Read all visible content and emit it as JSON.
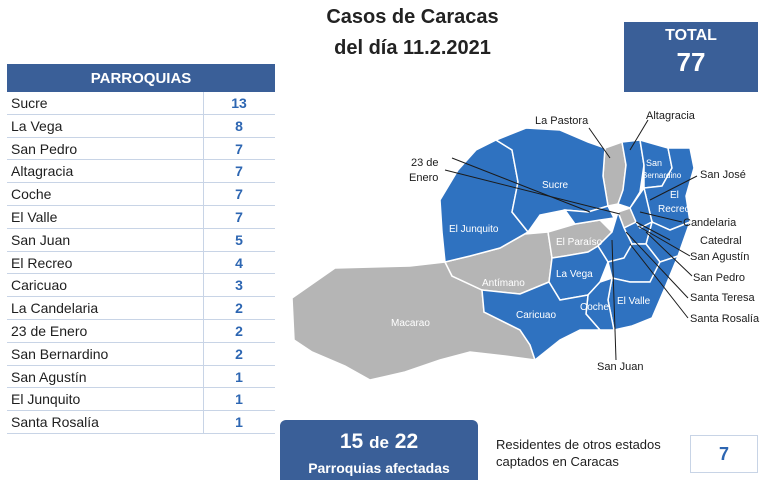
{
  "title": {
    "line1": "Casos de Caracas",
    "line2": "del día 11.2.2021"
  },
  "total": {
    "label": "TOTAL",
    "value": "77"
  },
  "table": {
    "header": "PARROQUIAS",
    "rows": [
      {
        "name": "Sucre",
        "value": "13"
      },
      {
        "name": "La Vega",
        "value": "8"
      },
      {
        "name": "San Pedro",
        "value": "7"
      },
      {
        "name": "Altagracia",
        "value": "7"
      },
      {
        "name": "Coche",
        "value": "7"
      },
      {
        "name": "El Valle",
        "value": "7"
      },
      {
        "name": "San Juan",
        "value": "5"
      },
      {
        "name": "El Recreo",
        "value": "4"
      },
      {
        "name": "Caricuao",
        "value": "3"
      },
      {
        "name": "La Candelaria",
        "value": "2"
      },
      {
        "name": "23 de Enero",
        "value": "2"
      },
      {
        "name": "San Bernardino",
        "value": "2"
      },
      {
        "name": "San Agustín",
        "value": "1"
      },
      {
        "name": "El Junquito",
        "value": "1"
      },
      {
        "name": "Santa Rosalía",
        "value": "1"
      }
    ]
  },
  "affected": {
    "count": "15",
    "connector": "de",
    "total": "22",
    "label": "Parroquias afectadas"
  },
  "residents": {
    "text": "Residentes de otros estados captados en Caracas",
    "value": "7"
  },
  "map": {
    "colors": {
      "affected": "#2f72c0",
      "unaffected": "#b5b5b5",
      "border": "#ffffff"
    },
    "inner_labels": {
      "sucre": "Sucre",
      "el_junquito": "El Junquito",
      "antimano": "Antímano",
      "macarao": "Macarao",
      "caricuao": "Caricuao",
      "la_vega": "La Vega",
      "el_paraiso": "El Paraíso",
      "coche": "Coche",
      "el_valle": "El Valle",
      "san_bernardino_1": "San",
      "san_bernardino_2": "Bernardino",
      "el_recreo_1": "El",
      "el_recreo_2": "Recreo"
    },
    "callouts": {
      "la_pastora": "La Pastora",
      "altagracia": "Altagracia",
      "enero_1": "23 de",
      "enero_2": "Enero",
      "san_jose": "San José",
      "candelaria": "Candelaria",
      "catedral": "Catedral",
      "san_agustin": "San Agustín",
      "san_pedro": "San Pedro",
      "santa_teresa": "Santa Teresa",
      "santa_rosalia": "Santa Rosalía",
      "san_juan": "San Juan"
    }
  }
}
